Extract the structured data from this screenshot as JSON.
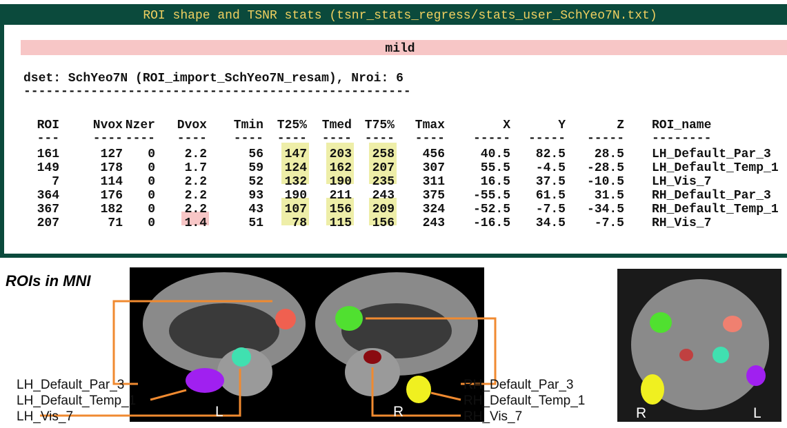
{
  "panel": {
    "title": "ROI shape and TSNR stats (tsnr_stats_regress/stats_user_SchYeo7N.txt)",
    "banner": "mild",
    "dset_line": "dset: SchYeo7N (ROI_import_SchYeo7N_resam), Nroi: 6",
    "separator": "----------------------------------------------------",
    "table": {
      "header": [
        "ROI",
        "Nvox",
        "Nzer",
        "Dvox",
        "Tmin",
        "T25%",
        "Tmed",
        "T75%",
        "Tmax",
        "X",
        "Y",
        "Z",
        "ROI_name"
      ],
      "rule": [
        "---",
        "----",
        "----",
        "----",
        "----",
        "----",
        "----",
        "----",
        "----",
        "-----",
        "-----",
        "-----",
        "--------"
      ],
      "rows": [
        [
          "161",
          "127",
          "0",
          "2.2",
          "56",
          "147",
          "203",
          "258",
          "456",
          "40.5",
          "82.5",
          "28.5",
          "LH_Default_Par_3"
        ],
        [
          "149",
          "178",
          "0",
          "1.7",
          "59",
          "124",
          "162",
          "207",
          "307",
          "55.5",
          "-4.5",
          "-28.5",
          "LH_Default_Temp_1"
        ],
        [
          "7",
          "114",
          "0",
          "2.2",
          "52",
          "132",
          "190",
          "235",
          "311",
          "16.5",
          "37.5",
          "-10.5",
          "LH_Vis_7"
        ],
        [
          "364",
          "176",
          "0",
          "2.2",
          "93",
          "190",
          "211",
          "243",
          "375",
          "-55.5",
          "61.5",
          "31.5",
          "RH_Default_Par_3"
        ],
        [
          "367",
          "182",
          "0",
          "2.2",
          "43",
          "107",
          "156",
          "209",
          "324",
          "-52.5",
          "-7.5",
          "-34.5",
          "RH_Default_Temp_1"
        ],
        [
          "207",
          "71",
          "0",
          "1.4",
          "51",
          "78",
          "115",
          "156",
          "243",
          "-16.5",
          "34.5",
          "-7.5",
          "RH_Vis_7"
        ]
      ],
      "highlights": [
        {
          "cell": [
            0,
            5
          ],
          "color": "#eeeea8"
        },
        {
          "cell": [
            0,
            6
          ],
          "color": "#eeeea8"
        },
        {
          "cell": [
            0,
            7
          ],
          "color": "#eeeea8"
        },
        {
          "cell": [
            1,
            5
          ],
          "color": "#eeeea8"
        },
        {
          "cell": [
            1,
            6
          ],
          "color": "#eeeea8"
        },
        {
          "cell": [
            1,
            7
          ],
          "color": "#eeeea8"
        },
        {
          "cell": [
            2,
            5
          ],
          "color": "#eeeea8"
        },
        {
          "cell": [
            2,
            6
          ],
          "color": "#eeeea8"
        },
        {
          "cell": [
            2,
            7
          ],
          "color": "#eeeea8"
        },
        {
          "cell": [
            4,
            5
          ],
          "color": "#eeeea8"
        },
        {
          "cell": [
            4,
            6
          ],
          "color": "#eeeea8"
        },
        {
          "cell": [
            4,
            7
          ],
          "color": "#eeeea8"
        },
        {
          "cell": [
            5,
            3
          ],
          "color": "#f7c6c6"
        },
        {
          "cell": [
            5,
            5
          ],
          "color": "#eeeea8"
        },
        {
          "cell": [
            5,
            6
          ],
          "color": "#eeeea8"
        },
        {
          "cell": [
            5,
            7
          ],
          "color": "#eeeea8"
        }
      ]
    }
  },
  "figure": {
    "heading": "ROIs in MNI",
    "left_labels": [
      "LH_Default_Par_3",
      "LH_Default_Temp_1",
      "LH_Vis_7"
    ],
    "right_labels": [
      "RH_Default_Par_3",
      "RH_Default_Temp_1",
      "RH_Vis_7"
    ],
    "sagittal_left_side": "L",
    "sagittal_right_side": "R",
    "coronal_left_side": "R",
    "coronal_right_side": "L"
  }
}
